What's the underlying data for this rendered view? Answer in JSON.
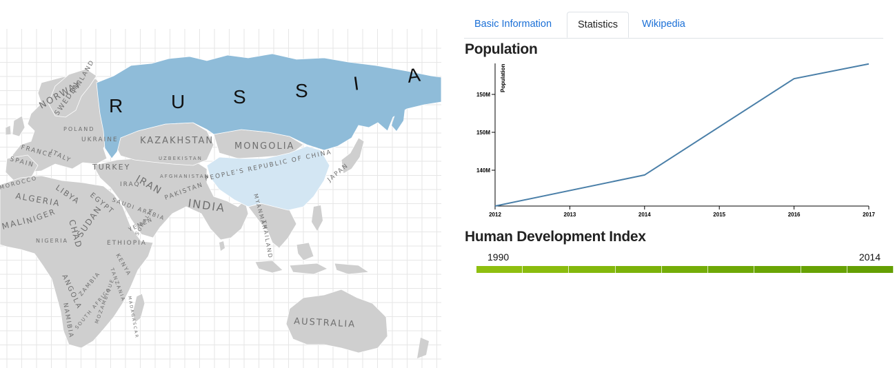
{
  "map": {
    "labels": {
      "russia": [
        "R",
        "U",
        "S",
        "S",
        "I",
        "A"
      ],
      "norway": "NORWAY",
      "sweden": "SWEDEN",
      "finland": "FINLAND",
      "poland": "POLAND",
      "ukraine": "UKRAINE",
      "france": "FRANCE",
      "italy": "ITALY",
      "spain": "SPAIN",
      "turkey": "TURKEY",
      "iran": "IRAN",
      "iraq": "IRAQ",
      "kazakhstan": "KAZAKHSTAN",
      "mongolia": "MONGOLIA",
      "uzbekistan": "UZBEKISTAN",
      "china": "PEOPLE'S REPUBLIC OF CHINA",
      "japan": "JAPAN",
      "afghanistan": "AFGHANISTAN",
      "pakistan": "PAKISTAN",
      "india": "INDIA",
      "myanmar": "MYANMAR",
      "thailand": "THAILAND",
      "morocco": "MOROCCO",
      "algeria": "ALGERIA",
      "libya": "LIBYA",
      "egypt": "EGYPT",
      "saudi_arabia": "SAUDI ARABIA",
      "yemen": "YEMEN",
      "mali": "MALI",
      "niger": "NIGER",
      "chad": "CHAD",
      "sudan": "SUDAN",
      "ethiopia": "ETHIOPIA",
      "somalia": "SOMALIA",
      "nigeria": "NIGERIA",
      "kenya": "KENYA",
      "tanzania": "TANZANIA",
      "angola": "ANGOLA",
      "zambia": "ZAMBIA",
      "namibia": "NAMIBIA",
      "mozambique": "MOZAMBIQUE",
      "south_africa": "SOUTH AFRICA",
      "madagascar": "MADAGASCAR",
      "australia": "AUSTRALIA"
    },
    "colors": {
      "selected": "#8fbcd9",
      "highlight": "#d3e6f3",
      "land": "#cfcfcf",
      "grid": "#e6e6e6"
    }
  },
  "tabs": [
    {
      "label": "Basic Information",
      "active": false
    },
    {
      "label": "Statistics",
      "active": true
    },
    {
      "label": "Wikipedia",
      "active": false
    }
  ],
  "population": {
    "title": "Population",
    "chart_data": {
      "type": "line",
      "x": [
        2012,
        2014,
        2016,
        2017
      ],
      "y": [
        130600000,
        136700000,
        155600000,
        158500000
      ],
      "xticks": [
        "2012",
        "2013",
        "2014",
        "2015",
        "2016",
        "2017"
      ],
      "yticks": [
        "140M",
        "150M",
        "150M"
      ],
      "ylabel": "Population",
      "xlim": [
        2012,
        2017
      ],
      "ylim": [
        130600000,
        158600000
      ],
      "line_color": "#4a7fa8"
    }
  },
  "hdi": {
    "title": "Human Development Index",
    "start_label": "1990",
    "end_label": "2014",
    "segments": [
      "#8fbf10",
      "#8abc0e",
      "#83b80c",
      "#7bb20a",
      "#74ad08",
      "#6ea806",
      "#6aa505",
      "#67a204",
      "#649f03"
    ]
  }
}
